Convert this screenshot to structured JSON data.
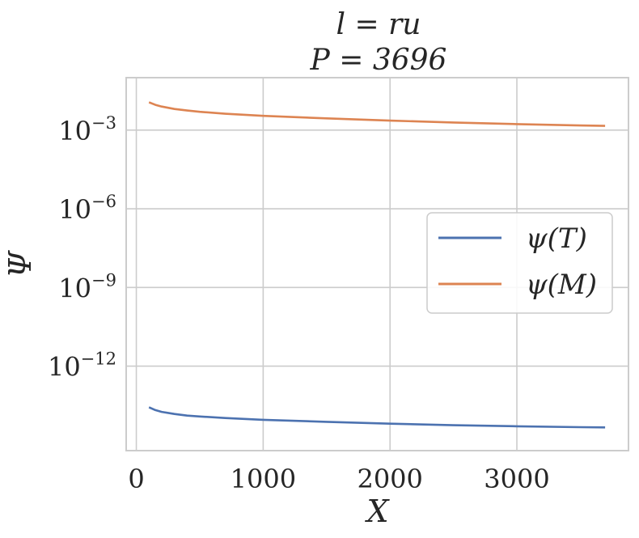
{
  "chart_data": {
    "type": "line",
    "title": "l = ru",
    "subtitle": "P = 3696",
    "xlabel": "X",
    "ylabel": "Ψ",
    "xlim": [
      -80,
      3880
    ],
    "ylim": [
      6e-16,
      0.1
    ],
    "yscale": "log",
    "xticks": [
      0,
      1000,
      2000,
      3000
    ],
    "xtick_labels": [
      "0",
      "1000",
      "2000",
      "3000"
    ],
    "yticks": [
      {
        "value": 0.001,
        "base": "10",
        "exp": "−3"
      },
      {
        "value": 1e-06,
        "base": "10",
        "exp": "−6"
      },
      {
        "value": 1e-09,
        "base": "10",
        "exp": "−9"
      },
      {
        "value": 1e-12,
        "base": "10",
        "exp": "−12"
      }
    ],
    "grid": true,
    "legend_position": "center-right",
    "series": [
      {
        "name": "ψ(T)",
        "color": "#4c72b0",
        "points": [
          [
            100,
            2.7e-14
          ],
          [
            150,
            2.1e-14
          ],
          [
            200,
            1.8e-14
          ],
          [
            300,
            1.5e-14
          ],
          [
            400,
            1.3e-14
          ],
          [
            500,
            1.2e-14
          ],
          [
            700,
            1.05e-14
          ],
          [
            1000,
            9e-15
          ],
          [
            1500,
            7.5e-15
          ],
          [
            2000,
            6.4e-15
          ],
          [
            2500,
            5.6e-15
          ],
          [
            3000,
            5.1e-15
          ],
          [
            3500,
            4.7e-15
          ],
          [
            3696,
            4.6e-15
          ]
        ]
      },
      {
        "name": "ψ(M)",
        "color": "#dd8452",
        "points": [
          [
            100,
            0.0115
          ],
          [
            150,
            0.0092
          ],
          [
            200,
            0.0079
          ],
          [
            300,
            0.0064
          ],
          [
            400,
            0.0056
          ],
          [
            500,
            0.005
          ],
          [
            700,
            0.0042
          ],
          [
            1000,
            0.0035
          ],
          [
            1500,
            0.0028
          ],
          [
            2000,
            0.0023
          ],
          [
            2500,
            0.00195
          ],
          [
            3000,
            0.0017
          ],
          [
            3500,
            0.0015
          ],
          [
            3696,
            0.00145
          ]
        ]
      }
    ]
  }
}
